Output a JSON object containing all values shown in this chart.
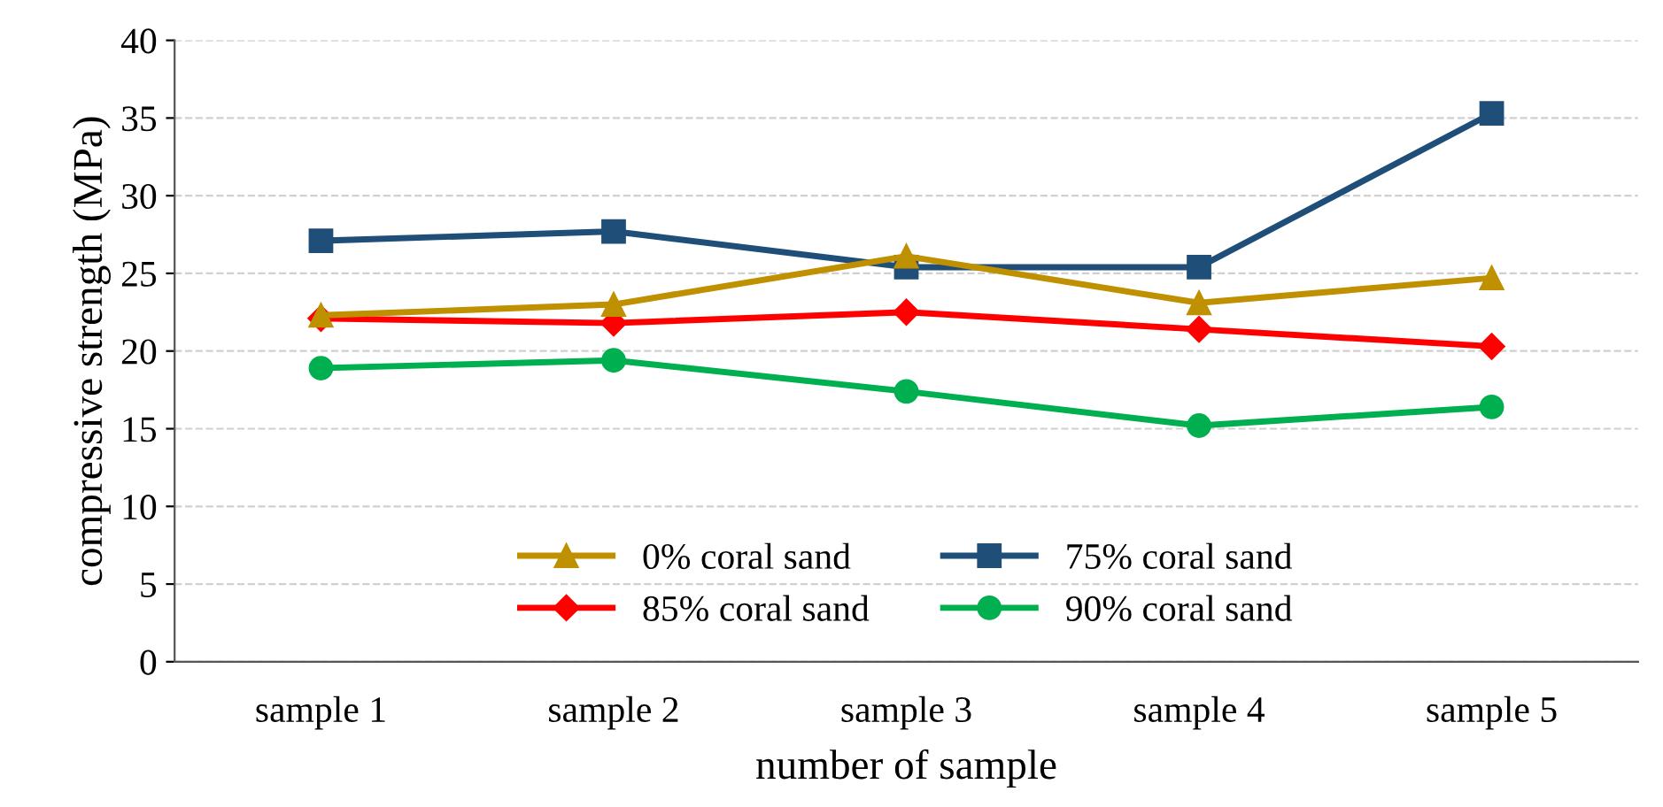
{
  "chart_data": {
    "type": "line",
    "xlabel": "number of sample",
    "ylabel": "compressive strength (MPa)",
    "categories": [
      "sample 1",
      "sample 2",
      "sample 3",
      "sample 4",
      "sample 5"
    ],
    "series": [
      {
        "name": "0% coral sand",
        "color": "#bf9000",
        "marker": "triangle",
        "values": [
          22.3,
          23.0,
          26.1,
          23.1,
          24.7
        ]
      },
      {
        "name": "75% coral sand",
        "color": "#1f4e79",
        "marker": "square",
        "values": [
          27.1,
          27.7,
          25.4,
          25.4,
          35.3
        ]
      },
      {
        "name": "85% coral sand",
        "color": "#ff0000",
        "marker": "diamond",
        "values": [
          22.1,
          21.8,
          22.5,
          21.4,
          20.3
        ]
      },
      {
        "name": "90% coral sand",
        "color": "#00b050",
        "marker": "circle",
        "values": [
          18.9,
          19.4,
          17.4,
          15.2,
          16.4
        ]
      }
    ],
    "ylim": [
      0,
      40
    ],
    "yticks": [
      0,
      5,
      10,
      15,
      20,
      25,
      30,
      35,
      40
    ],
    "grid": "y",
    "legend": "bottom",
    "line_style": "solid"
  }
}
